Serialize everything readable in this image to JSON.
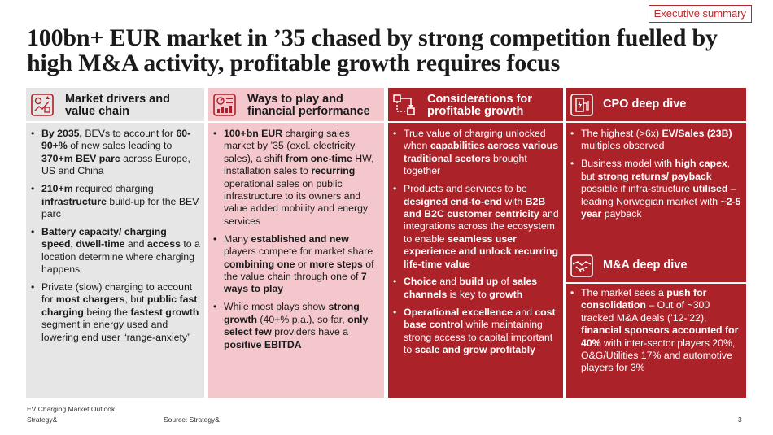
{
  "header": {
    "tag": "Executive summary",
    "title": "100bn+ EUR market in ’35 chased by strong competition fuelled by high M&A activity, profitable growth requires focus"
  },
  "colors": {
    "dark_red": "#ac2229",
    "pink": "#f4c7cc",
    "grey": "#e6e6e6",
    "accent": "#c0282d"
  },
  "columns": [
    {
      "icon": "market-chart-icon",
      "heading": "Market drivers and value chain",
      "bullets": [
        [
          {
            "b": "By 2035,"
          },
          {
            "t": " BEVs to account for "
          },
          {
            "b": "60-90+%"
          },
          {
            "t": " of new sales leading to "
          },
          {
            "b": "370+m BEV parc"
          },
          {
            "t": " across Europe, US and China"
          }
        ],
        [
          {
            "b": "210+m"
          },
          {
            "t": " required charging "
          },
          {
            "b": "infrastructure"
          },
          {
            "t": " build-up for the BEV parc"
          }
        ],
        [
          {
            "b": "Battery capacity/ charging speed, dwell-time"
          },
          {
            "t": " and "
          },
          {
            "b": "access"
          },
          {
            "t": " to a location determine where charging happens"
          }
        ],
        [
          {
            "t": "Private (slow) charging to account for "
          },
          {
            "b": "most chargers"
          },
          {
            "t": ", but "
          },
          {
            "b": "public fast charging"
          },
          {
            "t": " being the "
          },
          {
            "b": "fastest growth"
          },
          {
            "t": " segment in energy used and lowering end user “range-anxiety”"
          }
        ]
      ]
    },
    {
      "icon": "dashboard-icon",
      "heading": "Ways to play and financial performance",
      "bullets": [
        [
          {
            "b": "100+bn EUR"
          },
          {
            "t": " charging sales market by ’35 (excl. electricity sales), a shift "
          },
          {
            "b": "from one-time"
          },
          {
            "t": " HW, installation sales to "
          },
          {
            "b": "recurring"
          },
          {
            "t": " operational sales on public infrastructure to its owners and value added mobility and energy services"
          }
        ],
        [
          {
            "t": "Many "
          },
          {
            "b": "established and new"
          },
          {
            "t": " players compete for market share "
          },
          {
            "b": "combining one"
          },
          {
            "t": " or "
          },
          {
            "b": "more steps"
          },
          {
            "t": " of the value chain through one of "
          },
          {
            "b": "7 ways to play"
          }
        ],
        [
          {
            "t": "While most plays show "
          },
          {
            "b": "strong growth"
          },
          {
            "t": " (40+% p.a.), so far, "
          },
          {
            "b": "only select few"
          },
          {
            "t": " providers have a "
          },
          {
            "b": "positive EBITDA"
          }
        ]
      ]
    },
    {
      "icon": "flowchart-icon",
      "heading": "Considerations for profitable growth",
      "bullets": [
        [
          {
            "t": "True value of charging unlocked when "
          },
          {
            "b": "capabilities across various traditional sectors"
          },
          {
            "t": " brought together"
          }
        ],
        [
          {
            "t": "Products and services to be "
          },
          {
            "b": "designed end-to-end"
          },
          {
            "t": " with "
          },
          {
            "b": "B2B and B2C customer centricity"
          },
          {
            "t": " and integrations across the ecosystem to enable "
          },
          {
            "b": "seamless user experience and unlock recurring life-time value"
          }
        ],
        [
          {
            "b": "Choice"
          },
          {
            "t": " and "
          },
          {
            "b": "build up"
          },
          {
            "t": " of "
          },
          {
            "b": "sales channels"
          },
          {
            "t": " is key to "
          },
          {
            "b": "growth"
          }
        ],
        [
          {
            "b": "Operational excellence"
          },
          {
            "t": " and "
          },
          {
            "b": "cost base control"
          },
          {
            "t": " while maintaining strong access to capital important to "
          },
          {
            "b": "scale and grow profitably"
          }
        ]
      ]
    },
    {
      "sections": [
        {
          "icon": "charging-station-icon",
          "heading": "CPO deep dive",
          "bullets": [
            [
              {
                "t": "The highest (>6x) "
              },
              {
                "b": "EV/Sales (23B)"
              },
              {
                "t": " multiples observed"
              }
            ],
            [
              {
                "t": "Business model with "
              },
              {
                "b": "high capex"
              },
              {
                "t": ", but "
              },
              {
                "b": "strong returns/ payback"
              },
              {
                "t": " possible if infra-structure "
              },
              {
                "b": "utilised"
              },
              {
                "t": " – leading Norwegian market with "
              },
              {
                "b": "~2-5 year"
              },
              {
                "t": " payback"
              }
            ]
          ]
        },
        {
          "icon": "handshake-icon",
          "heading": "M&A deep dive",
          "bullets": [
            [
              {
                "t": "The market sees a "
              },
              {
                "b": "push for consolidation"
              },
              {
                "t": " – Out of ~300 tracked M&A deals (’12-’22), "
              },
              {
                "b": "financial sponsors accounted for 40%"
              },
              {
                "t": " with inter-sector players 20%, O&G/Utilities 17% and automotive players for 3%"
              }
            ]
          ]
        }
      ]
    }
  ],
  "footer": {
    "report": "EV Charging Market Outlook",
    "company": "Strategy&",
    "source": "Source: Strategy&",
    "page": "3"
  }
}
